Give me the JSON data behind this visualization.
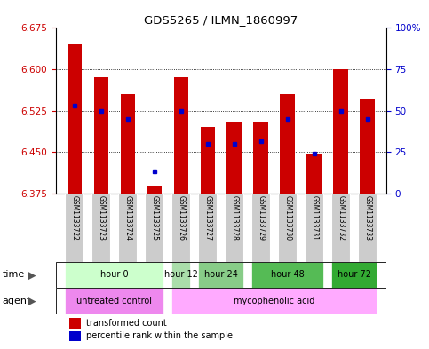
{
  "title": "GDS5265 / ILMN_1860997",
  "samples": [
    "GSM1133722",
    "GSM1133723",
    "GSM1133724",
    "GSM1133725",
    "GSM1133726",
    "GSM1133727",
    "GSM1133728",
    "GSM1133729",
    "GSM1133730",
    "GSM1133731",
    "GSM1133732",
    "GSM1133733"
  ],
  "bar_tops": [
    6.645,
    6.585,
    6.555,
    6.39,
    6.585,
    6.495,
    6.505,
    6.505,
    6.555,
    6.448,
    6.6,
    6.545
  ],
  "bar_bottom": 6.375,
  "blue_dot_y": [
    6.535,
    6.525,
    6.51,
    6.415,
    6.525,
    6.465,
    6.465,
    6.47,
    6.51,
    6.448,
    6.525,
    6.51
  ],
  "bar_color": "#cc0000",
  "dot_color": "#0000cc",
  "ylim": [
    6.375,
    6.675
  ],
  "yticks_left": [
    6.375,
    6.45,
    6.525,
    6.6,
    6.675
  ],
  "yticks_right": [
    0,
    25,
    50,
    75,
    100
  ],
  "right_y_color": "#0000cc",
  "left_y_color": "#cc0000",
  "time_groups": [
    {
      "label": "hour 0",
      "start": 0,
      "end": 3,
      "color": "#ccffcc"
    },
    {
      "label": "hour 12",
      "start": 4,
      "end": 4,
      "color": "#aaddaa"
    },
    {
      "label": "hour 24",
      "start": 5,
      "end": 6,
      "color": "#88cc88"
    },
    {
      "label": "hour 48",
      "start": 7,
      "end": 9,
      "color": "#55bb55"
    },
    {
      "label": "hour 72",
      "start": 10,
      "end": 11,
      "color": "#33aa33"
    }
  ],
  "agent_groups": [
    {
      "label": "untreated control",
      "start": 0,
      "end": 3,
      "color": "#ee88ee"
    },
    {
      "label": "mycophenolic acid",
      "start": 4,
      "end": 11,
      "color": "#ffaaff"
    }
  ],
  "legend_items": [
    {
      "color": "#cc0000",
      "label": "transformed count"
    },
    {
      "color": "#0000cc",
      "label": "percentile rank within the sample"
    }
  ],
  "sample_bg_color": "#cccccc",
  "bar_width": 0.55,
  "fig_width": 4.83,
  "fig_height": 3.93,
  "dpi": 100
}
